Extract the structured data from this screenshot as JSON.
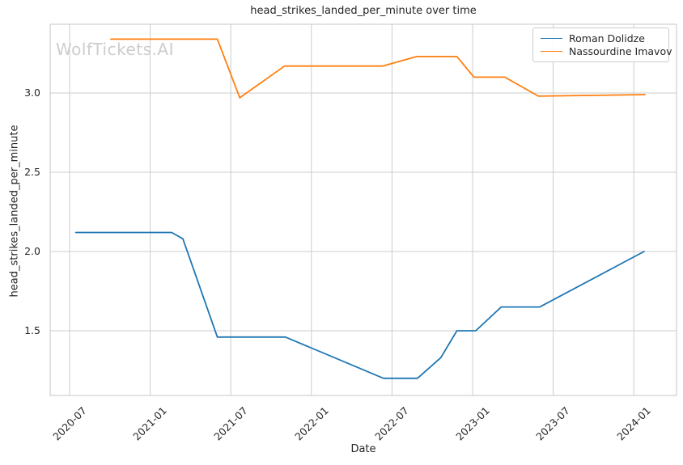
{
  "watermark": "WolfTickets.AI",
  "chart_data": {
    "type": "line",
    "title": "head_strikes_landed_per_minute over time",
    "xlabel": "Date",
    "ylabel": "head_strikes_landed_per_minute",
    "x_tick_labels": [
      "2020-07",
      "2021-01",
      "2021-07",
      "2022-01",
      "2022-07",
      "2023-01",
      "2023-07",
      "2024-01"
    ],
    "y_ticks": [
      1.5,
      2.0,
      2.5,
      3.0
    ],
    "y_tick_labels": [
      "1.5",
      "2.0",
      "2.5",
      "3.0"
    ],
    "ylim_visible": [
      1.09,
      3.43
    ],
    "grid": true,
    "legend_position": "upper right",
    "background": "#ffffff",
    "grid_color": "#cccccc",
    "spine_color": "#c6c6c6",
    "series": [
      {
        "name": "Roman Dolidze",
        "color": "#1f77b4",
        "points": [
          [
            "2020-07-15",
            2.12
          ],
          [
            "2021-02-19",
            2.12
          ],
          [
            "2021-03-14",
            2.08
          ],
          [
            "2021-06-01",
            1.46
          ],
          [
            "2021-11-03",
            1.46
          ],
          [
            "2022-06-12",
            1.2
          ],
          [
            "2022-08-28",
            1.2
          ],
          [
            "2022-10-20",
            1.33
          ],
          [
            "2022-11-26",
            1.5
          ],
          [
            "2023-01-08",
            1.5
          ],
          [
            "2023-03-05",
            1.65
          ],
          [
            "2023-06-01",
            1.65
          ],
          [
            "2024-01-24",
            2.0
          ]
        ]
      },
      {
        "name": "Nassourdine Imavov",
        "color": "#ff7f0e",
        "points": [
          [
            "2020-10-03",
            3.34
          ],
          [
            "2021-06-01",
            3.34
          ],
          [
            "2021-07-21",
            2.97
          ],
          [
            "2021-11-01",
            3.17
          ],
          [
            "2022-06-10",
            3.17
          ],
          [
            "2022-08-26",
            3.23
          ],
          [
            "2022-11-26",
            3.23
          ],
          [
            "2023-01-04",
            3.1
          ],
          [
            "2023-03-13",
            3.1
          ],
          [
            "2023-05-28",
            2.98
          ],
          [
            "2024-01-26",
            2.99
          ]
        ]
      }
    ]
  }
}
